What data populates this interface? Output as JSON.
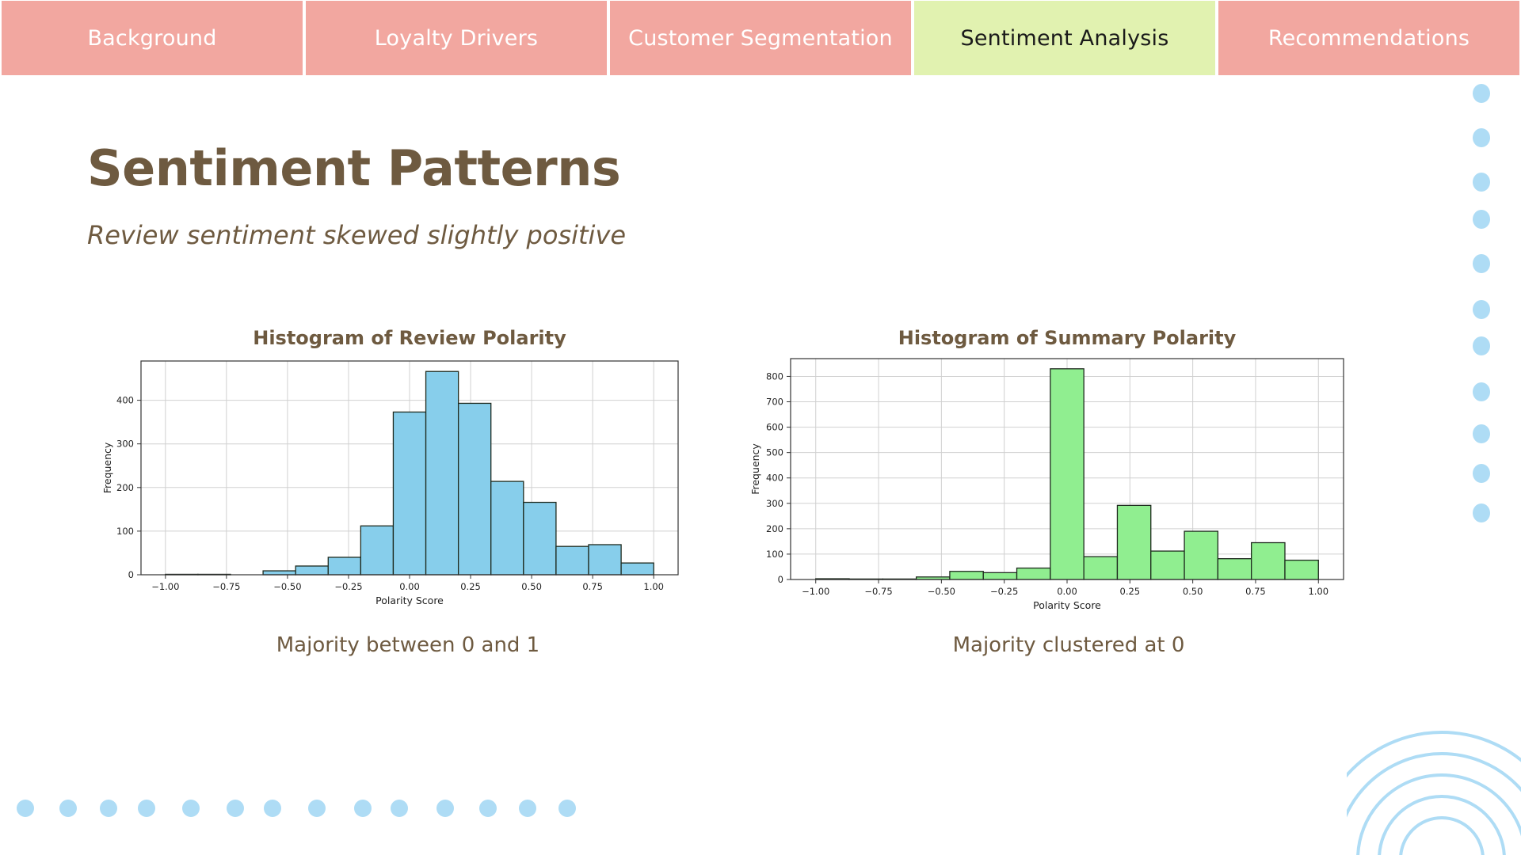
{
  "nav": {
    "tabs": [
      {
        "label": "Background",
        "color": "#f2a7a0",
        "active": false
      },
      {
        "label": "Loyalty Drivers",
        "color": "#f2a7a0",
        "active": false
      },
      {
        "label": "Customer Segmentation",
        "color": "#f2a7a0",
        "active": false
      },
      {
        "label": "Sentiment Analysis",
        "color": "#e1f2b0",
        "active": true
      },
      {
        "label": "Recommendations",
        "color": "#f2a7a0",
        "active": false
      }
    ]
  },
  "slide": {
    "title": "Sentiment Patterns",
    "subtitle": "Review sentiment skewed slightly positive",
    "captions": [
      "Majority between 0 and 1",
      "Majority clustered at 0"
    ]
  },
  "colors": {
    "text_brown": "#6e5a40",
    "decor_blue": "#aedcf5",
    "review_bar": "#87ceeb",
    "summary_bar": "#90ee90"
  },
  "chart_data": [
    {
      "type": "bar",
      "title": "Histogram of Review Polarity",
      "xlabel": "Polarity Score",
      "ylabel": "Frequency",
      "xlim": [
        -1.1,
        1.1
      ],
      "ylim": [
        0,
        490
      ],
      "xticks": [
        -1.0,
        -0.75,
        -0.5,
        -0.25,
        0.0,
        0.25,
        0.5,
        0.75,
        1.0
      ],
      "xtick_labels": [
        "−1.00",
        "−0.75",
        "−0.50",
        "−0.25",
        "0.00",
        "0.25",
        "0.50",
        "0.75",
        "1.00"
      ],
      "yticks": [
        0,
        100,
        200,
        300,
        400
      ],
      "ytick_labels": [
        "0",
        "100",
        "200",
        "300",
        "400"
      ],
      "grid": true,
      "bar_color": "#87ceeb",
      "bin_edges": [
        -1.0,
        -0.8667,
        -0.7333,
        -0.6,
        -0.4667,
        -0.3333,
        -0.2,
        -0.0667,
        0.0667,
        0.2,
        0.3333,
        0.4667,
        0.6,
        0.7333,
        0.8667,
        1.0
      ],
      "counts": [
        1,
        1,
        0,
        9,
        20,
        40,
        112,
        373,
        466,
        393,
        214,
        166,
        65,
        69,
        27
      ]
    },
    {
      "type": "bar",
      "title": "Histogram of Summary Polarity",
      "xlabel": "Polarity Score",
      "ylabel": "Frequency",
      "xlim": [
        -1.1,
        1.1
      ],
      "ylim": [
        0,
        870
      ],
      "xticks": [
        -1.0,
        -0.75,
        -0.5,
        -0.25,
        0.0,
        0.25,
        0.5,
        0.75,
        1.0
      ],
      "xtick_labels": [
        "−1.00",
        "−0.75",
        "−0.50",
        "−0.25",
        "0.00",
        "0.25",
        "0.50",
        "0.75",
        "1.00"
      ],
      "yticks": [
        0,
        100,
        200,
        300,
        400,
        500,
        600,
        700,
        800
      ],
      "ytick_labels": [
        "0",
        "100",
        "200",
        "300",
        "400",
        "500",
        "600",
        "700",
        "800"
      ],
      "grid": true,
      "bar_color": "#90ee90",
      "bin_edges": [
        -1.0,
        -0.8667,
        -0.7333,
        -0.6,
        -0.4667,
        -0.3333,
        -0.2,
        -0.0667,
        0.0667,
        0.2,
        0.3333,
        0.4667,
        0.6,
        0.7333,
        0.8667,
        1.0
      ],
      "counts": [
        3,
        2,
        2,
        10,
        32,
        27,
        45,
        830,
        90,
        292,
        112,
        190,
        82,
        145,
        76
      ]
    }
  ]
}
